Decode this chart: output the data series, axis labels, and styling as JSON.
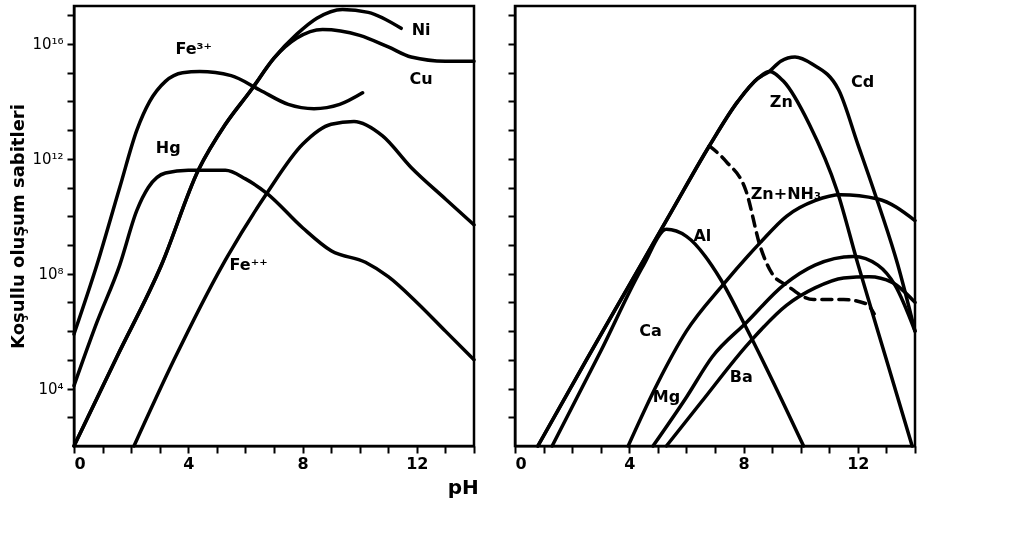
{
  "chart_data": [
    {
      "type": "line",
      "xlabel": "pH",
      "ylabel": "Koşullu oluşum sabitleri",
      "log": "y",
      "xlim": [
        0,
        14
      ],
      "ylim": [
        100,
        2.1e+17
      ],
      "xticks": [
        0,
        {
          "value": 1,
          "label": null
        },
        {
          "value": 2,
          "label": null
        },
        {
          "value": 3,
          "label": null
        },
        4,
        {
          "value": 5,
          "label": null
        },
        {
          "value": 6,
          "label": null
        },
        {
          "value": 7,
          "label": null
        },
        8,
        {
          "value": 9,
          "label": null
        },
        {
          "value": 10,
          "label": null
        },
        {
          "value": 11,
          "label": null
        },
        12,
        {
          "value": 13,
          "label": null
        },
        {
          "value": 14,
          "label": null
        }
      ],
      "yticks": [
        {
          "value": 1000,
          "label": null
        },
        {
          "value": 10000,
          "label": "10⁴"
        },
        {
          "value": 100000,
          "label": null
        },
        {
          "value": 1000000,
          "label": null
        },
        {
          "value": 10000000,
          "label": null
        },
        {
          "value": 100000000,
          "label": "10⁸"
        },
        {
          "value": 1000000000,
          "label": null
        },
        {
          "value": 10000000000,
          "label": null
        },
        {
          "value": 100000000000,
          "label": null
        },
        {
          "value": 1000000000000,
          "label": "10¹²"
        },
        {
          "value": 10000000000000,
          "label": null
        },
        {
          "value": 100000000000000,
          "label": null
        },
        {
          "value": 1000000000000000,
          "label": null
        },
        {
          "value": 10000000000000000,
          "label": "10¹⁶"
        },
        {
          "value": 100000000000000000,
          "label": null
        }
      ],
      "series": [
        {
          "name": "Fe³⁺",
          "color": "#000000",
          "x": [
            0,
            0.8,
            1.6,
            2.2,
            2.65,
            3.2,
            3.8,
            4.4,
            5.5,
            6.5,
            7.5,
            8.4,
            9.3,
            10.1
          ],
          "values": [
            790000.0,
            200000000.0,
            100000000000.0,
            10000000000000.0,
            100000000000000.0,
            500000000000000.0,
            1000000000000000.0,
            1100000000000000.0,
            790000000000000.0,
            250000000000000.0,
            79000000000000.0,
            56000000000000.0,
            79000000000000.0,
            200000000000000.0
          ]
        },
        {
          "name": "Hg",
          "color": "#000000",
          "x": [
            0,
            0.8,
            1.6,
            2.2,
            2.6,
            3.2,
            4.0,
            5.3,
            6.0,
            6.75,
            8.0,
            9.0,
            10.2,
            11.0,
            12.0,
            13.0,
            14
          ],
          "values": [
            12600.0,
            2000000.0,
            200000000.0,
            16000000000.0,
            100000000000.0,
            320000000000.0,
            400000000000.0,
            400000000000.0,
            200000000000.0,
            63000000000.0,
            4000000000.0,
            630000000.0,
            250000000.0,
            79000000.0,
            10000000.0,
            1000000.0,
            100000.0
          ]
        },
        {
          "name": "Ni",
          "color": "#000000",
          "x": [
            0,
            1.5,
            3.06,
            4.35,
            5.3,
            6.2,
            7.0,
            7.8,
            8.5,
            9.4,
            10.3,
            11.45
          ],
          "values": [
            100,
            126000.0,
            200000000.0,
            400000000000.0,
            16000000000000.0,
            250000000000000.0,
            3200000000000000.0,
            2.2e+16,
            7.9e+16,
            1.6e+17,
            1.26e+17,
            3.5e+16
          ]
        },
        {
          "name": "Cu",
          "color": "#000000",
          "x": [
            0,
            1.5,
            3.06,
            4.35,
            5.3,
            6.2,
            7.0,
            7.8,
            8.7,
            10.0,
            11.0,
            11.8,
            13.0,
            14
          ],
          "values": [
            100,
            126000.0,
            200000000.0,
            400000000000.0,
            16000000000000.0,
            250000000000000.0,
            3200000000000000.0,
            1.6e+16,
            3.2e+16,
            2e+16,
            7900000000000000.0,
            3500000000000000.0,
            2500000000000000.0,
            2500000000000000.0
          ]
        },
        {
          "name": "Fe⁺⁺",
          "color": "#000000",
          "x": [
            2.1,
            3.5,
            5.2,
            6.75,
            8.0,
            9.0,
            9.8,
            10.8,
            11.8,
            13.0,
            14
          ],
          "values": [
            100,
            100000.0,
            200000000.0,
            63000000000.0,
            3200000000000.0,
            16000000000000.0,
            20000000000000.0,
            6300000000000.0,
            500000000000.0,
            40000000000.0,
            5000000000.0
          ]
        }
      ]
    },
    {
      "type": "line",
      "log": "y",
      "xlim": [
        0,
        14
      ],
      "ylim": [
        100,
        2.1e+17
      ],
      "tick_labels": "x",
      "xticks": [
        0,
        {
          "value": 1,
          "label": null
        },
        {
          "value": 2,
          "label": null
        },
        {
          "value": 3,
          "label": null
        },
        4,
        {
          "value": 5,
          "label": null
        },
        {
          "value": 6,
          "label": null
        },
        {
          "value": 7,
          "label": null
        },
        8,
        {
          "value": 9,
          "label": null
        },
        {
          "value": 10,
          "label": null
        },
        {
          "value": 11,
          "label": null
        },
        12,
        {
          "value": 13,
          "label": null
        },
        {
          "value": 14,
          "label": null
        }
      ],
      "yticks": [
        {
          "value": 1000,
          "label": null
        },
        {
          "value": 10000,
          "label": null
        },
        {
          "value": 100000,
          "label": null
        },
        {
          "value": 1000000,
          "label": null
        },
        {
          "value": 10000000,
          "label": null
        },
        {
          "value": 100000000,
          "label": null
        },
        {
          "value": 1000000000,
          "label": null
        },
        {
          "value": 10000000000,
          "label": null
        },
        {
          "value": 100000000000,
          "label": null
        },
        {
          "value": 1000000000000,
          "label": null
        },
        {
          "value": 10000000000000,
          "label": null
        },
        {
          "value": 100000000000000,
          "label": null
        },
        {
          "value": 1000000000000000,
          "label": null
        },
        {
          "value": 10000000000000000,
          "label": null
        },
        {
          "value": 100000000000000000,
          "label": null
        }
      ],
      "series": [
        {
          "name": "Zn",
          "color": "#000000",
          "x": [
            0.8,
            2.5,
            4.0,
            5.5,
            6.8,
            7.8,
            8.5,
            8.9,
            9.4,
            10.3,
            11.27,
            12.0,
            13.0,
            13.9
          ],
          "values": [
            100,
            100000.0,
            40000000.0,
            16000000000.0,
            2800000000000.0,
            100000000000000.0,
            630000000000000.0,
            1100000000000000.0,
            500000000000000.0,
            16000000000000.0,
            79000000000.0,
            220000000.0,
            100000.0,
            100
          ]
        },
        {
          "name": "Cd",
          "color": "#000000",
          "x": [
            0.8,
            2.5,
            4.0,
            5.5,
            6.8,
            7.8,
            8.5,
            8.9,
            9.3,
            9.8,
            10.4,
            11.33,
            12.0,
            12.56,
            13.4,
            14
          ],
          "values": [
            100,
            100000.0,
            40000000.0,
            16000000000.0,
            2800000000000.0,
            100000000000000.0,
            630000000000000.0,
            1100000000000000.0,
            2500000000000000.0,
            3500000000000000.0,
            2000000000000000.0,
            250000000000000.0,
            3200000000000.0,
            79000000000.0,
            200000000.0,
            1000000.0
          ]
        },
        {
          "name": "Zn+NH₃",
          "color": "#000000",
          "line_style": "dashed",
          "x": [
            6.8,
            7.4,
            8.08,
            8.6,
            9.0,
            9.5,
            10.45,
            11.5,
            12.3,
            12.57
          ],
          "values": [
            2800000000000.0,
            790000000000.0,
            79000000000.0,
            790000000.0,
            100000000.0,
            40000000.0,
            12600000.0,
            12600000.0,
            8900000.0,
            4000000.0
          ]
        },
        {
          "name": "Al",
          "color": "#000000",
          "x": [
            1.3,
            3.0,
            4.5,
            5.3,
            6.0,
            7.2,
            8.0,
            9.0,
            10.1
          ],
          "values": [
            100,
            200000.0,
            200000000.0,
            3500000000.0,
            2000000000.0,
            63000000.0,
            2000000.0,
            20000.0,
            100
          ]
        },
        {
          "name": "Ca",
          "color": "#000000",
          "x": [
            3.96,
            5.0,
            6.0,
            7.27,
            8.6,
            9.5,
            10.5,
            11.4,
            12.7,
            14
          ],
          "values": [
            100,
            16000.0,
            1000000.0,
            40000000.0,
            1260000000.0,
            10000000000.0,
            35000000000.0,
            56000000000.0,
            40000000000.0,
            7100000000.0
          ]
        },
        {
          "name": "Mg",
          "color": "#000000",
          "x": [
            4.83,
            6.0,
            6.9,
            8.1,
            9.4,
            10.5,
            11.85,
            12.7,
            13.3,
            14
          ],
          "values": [
            100,
            5000.0,
            126000.0,
            2000000.0,
            40000000.0,
            200000000.0,
            400000000.0,
            200000000.0,
            40000000.0,
            1000000.0
          ]
        },
        {
          "name": "Ba",
          "color": "#000000",
          "x": [
            5.3,
            6.5,
            8.2,
            9.5,
            10.5,
            11.5,
            12.4,
            13.2,
            14
          ],
          "values": [
            100,
            3200.0,
            400000.0,
            7900000.0,
            32000000.0,
            71000000.0,
            79000000.0,
            50000000.0,
            10000000.0
          ]
        }
      ]
    }
  ]
}
